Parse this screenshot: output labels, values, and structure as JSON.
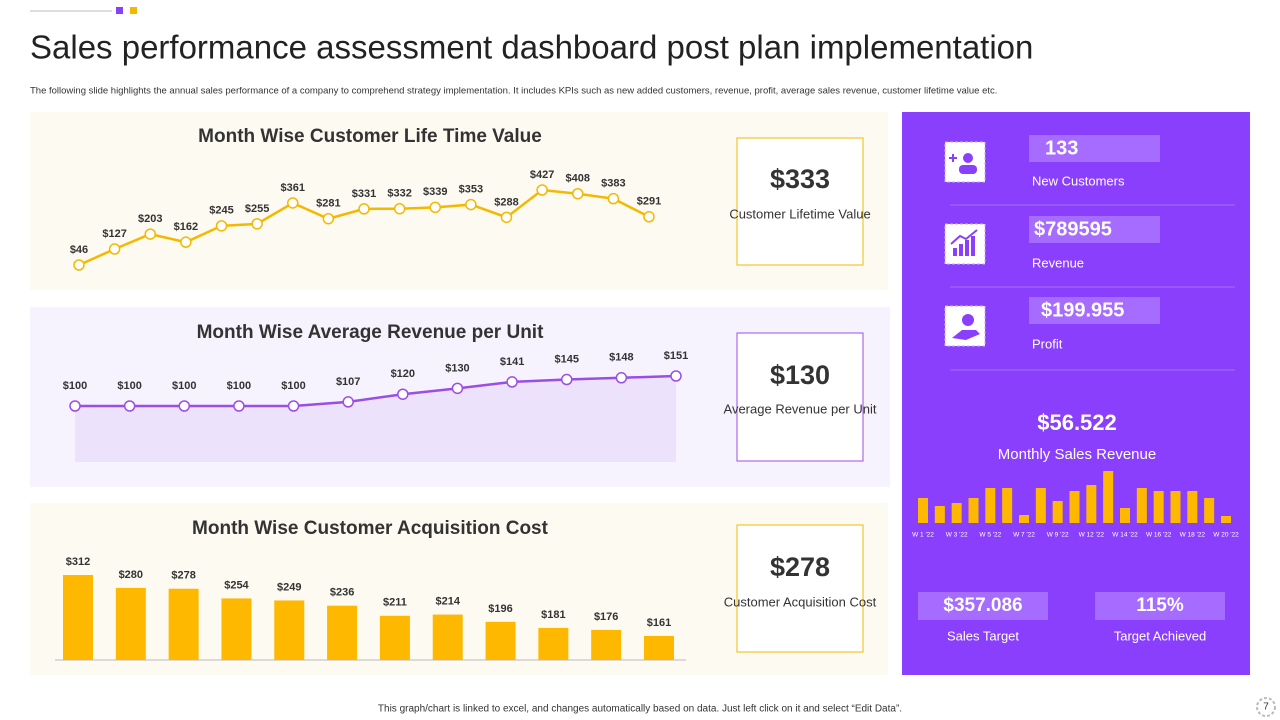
{
  "header": {
    "title": "Sales performance assessment dashboard post plan implementation",
    "subtitle": "The following slide highlights the annual sales performance of a company to comprehend strategy implementation.  It includes KPIs  such as new added customers, revenue, profit, average sales revenue, customer lifetime value etc."
  },
  "chart_data": [
    {
      "type": "line",
      "title": "Month Wise Customer Life Time Value",
      "color": "#f5b800",
      "values": [
        46,
        127,
        203,
        162,
        245,
        255,
        361,
        281,
        331,
        332,
        339,
        353,
        288,
        427,
        408,
        383,
        291
      ],
      "value_labels": [
        "$46",
        "$127",
        "$203",
        "$162",
        "$245",
        "$255",
        "$361",
        "$281",
        "$331",
        "$332",
        "$339",
        "$353",
        "$288",
        "$427",
        "$408",
        "$383",
        "$291"
      ]
    },
    {
      "type": "area",
      "title": "Month Wise Average Revenue per Unit",
      "color": "#9b4de8",
      "values": [
        100,
        100,
        100,
        100,
        100,
        107,
        120,
        130,
        141,
        145,
        148,
        151
      ],
      "value_labels": [
        "$100",
        "$100",
        "$100",
        "$100",
        "$100",
        "$107",
        "$120",
        "$130",
        "$141",
        "$145",
        "$148",
        "$151"
      ]
    },
    {
      "type": "bar",
      "title": "Month Wise Customer Acquisition Cost",
      "color": "#ffb800",
      "values": [
        312,
        280,
        278,
        254,
        249,
        236,
        211,
        214,
        196,
        181,
        176,
        161
      ],
      "value_labels": [
        "$312",
        "$280",
        "$278",
        "$254",
        "$249",
        "$236",
        "$211",
        "$214",
        "$196",
        "$181",
        "$176",
        "$161"
      ]
    },
    {
      "type": "bar",
      "title": "Monthly Sales Revenue",
      "heading": "$56.522",
      "color": "#ffb800",
      "categories": [
        "W 1 '22",
        null,
        "W 3 '22",
        null,
        "W 5 '22",
        null,
        "W 7 '22",
        null,
        "W 9 '22",
        null,
        "W 12 '22",
        null,
        "W 14 '22",
        null,
        "W 16 '22",
        null,
        "W 18 '22",
        null,
        "W 20 '22"
      ],
      "values": [
        25,
        17,
        20,
        25,
        35,
        35,
        8,
        35,
        22,
        32,
        38,
        52,
        15,
        35,
        32,
        32,
        32,
        25,
        7
      ]
    }
  ],
  "kpi_cards": [
    {
      "value": "$333",
      "label": "Customer Lifetime Value"
    },
    {
      "value": "$130",
      "label": "Average Revenue  per Unit"
    },
    {
      "value": "$278",
      "label": "Customer Acquisition Cost"
    }
  ],
  "side_panel": {
    "stats": [
      {
        "value": "133",
        "label": "New Customers"
      },
      {
        "value": "$789595",
        "label": "Revenue"
      },
      {
        "value": "$199.955",
        "label": "Profit"
      }
    ],
    "targets": [
      {
        "value": "$357.086",
        "label": "Sales Target"
      },
      {
        "value": "115%",
        "label": "Target Achieved"
      }
    ]
  },
  "footer": {
    "note": "This graph/chart is linked to excel, and changes automatically based on data. Just left click on it and select “Edit Data”.",
    "page": "7"
  }
}
